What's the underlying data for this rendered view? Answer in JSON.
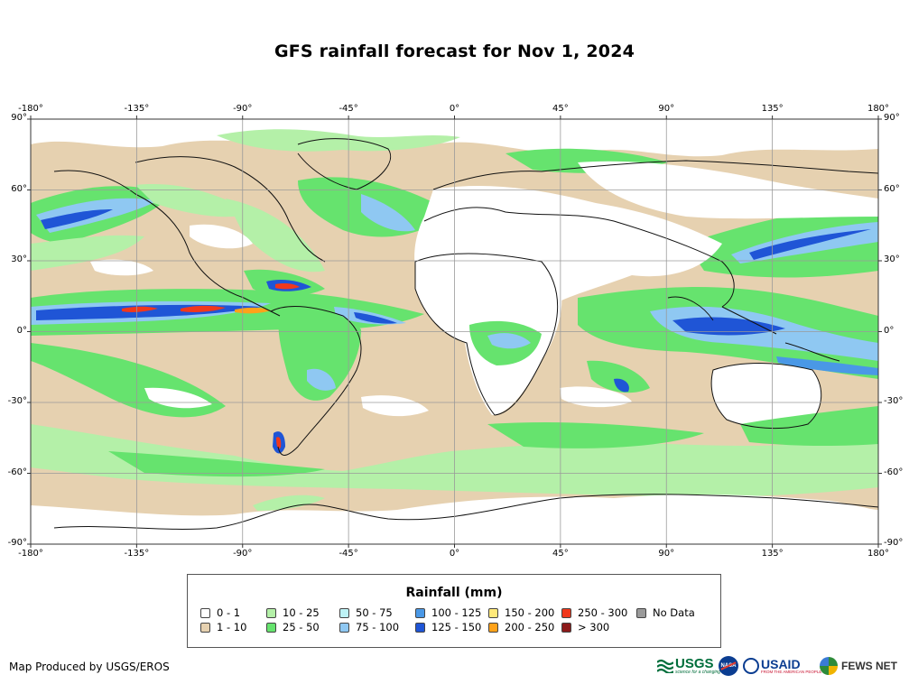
{
  "title": "GFS rainfall forecast for Nov 1, 2024",
  "map": {
    "lon_ticks": [
      "-180°",
      "-135°",
      "-90°",
      "-45°",
      "0°",
      "45°",
      "90°",
      "135°",
      "180°"
    ],
    "lat_ticks": [
      "90°",
      "60°",
      "30°",
      "0°",
      "-30°",
      "-60°",
      "-90°"
    ],
    "colors": {
      "ocean_base": "#e6d1b0",
      "grid": "#9a9a9a",
      "coast": "#111111"
    }
  },
  "legend": {
    "title": "Rainfall (mm)",
    "items": [
      {
        "label": "0 - 1",
        "color": "#ffffff"
      },
      {
        "label": "1 - 10",
        "color": "#e6d1b0"
      },
      {
        "label": "10 - 25",
        "color": "#b4f0a8"
      },
      {
        "label": "25 - 50",
        "color": "#66e36e"
      },
      {
        "label": "50 - 75",
        "color": "#bdf2f5"
      },
      {
        "label": "75 - 100",
        "color": "#8fc8f2"
      },
      {
        "label": "100 - 125",
        "color": "#4a98e6"
      },
      {
        "label": "125 - 150",
        "color": "#1f55d6"
      },
      {
        "label": "150 - 200",
        "color": "#ffe97a"
      },
      {
        "label": "200 - 250",
        "color": "#ffa21a"
      },
      {
        "label": "250 - 300",
        "color": "#f0381c"
      },
      {
        "label": "> 300",
        "color": "#8c1a1a"
      },
      {
        "label": "No Data",
        "color": "#9a9a9a"
      }
    ]
  },
  "credit": "Map Produced by USGS/EROS",
  "logos": {
    "usgs": "USGS",
    "usgs_tagline": "science for a changing world",
    "nasa": "NASA",
    "usaid": "USAID",
    "usaid_tagline": "FROM THE AMERICAN PEOPLE",
    "fews": "FEWS NET"
  }
}
